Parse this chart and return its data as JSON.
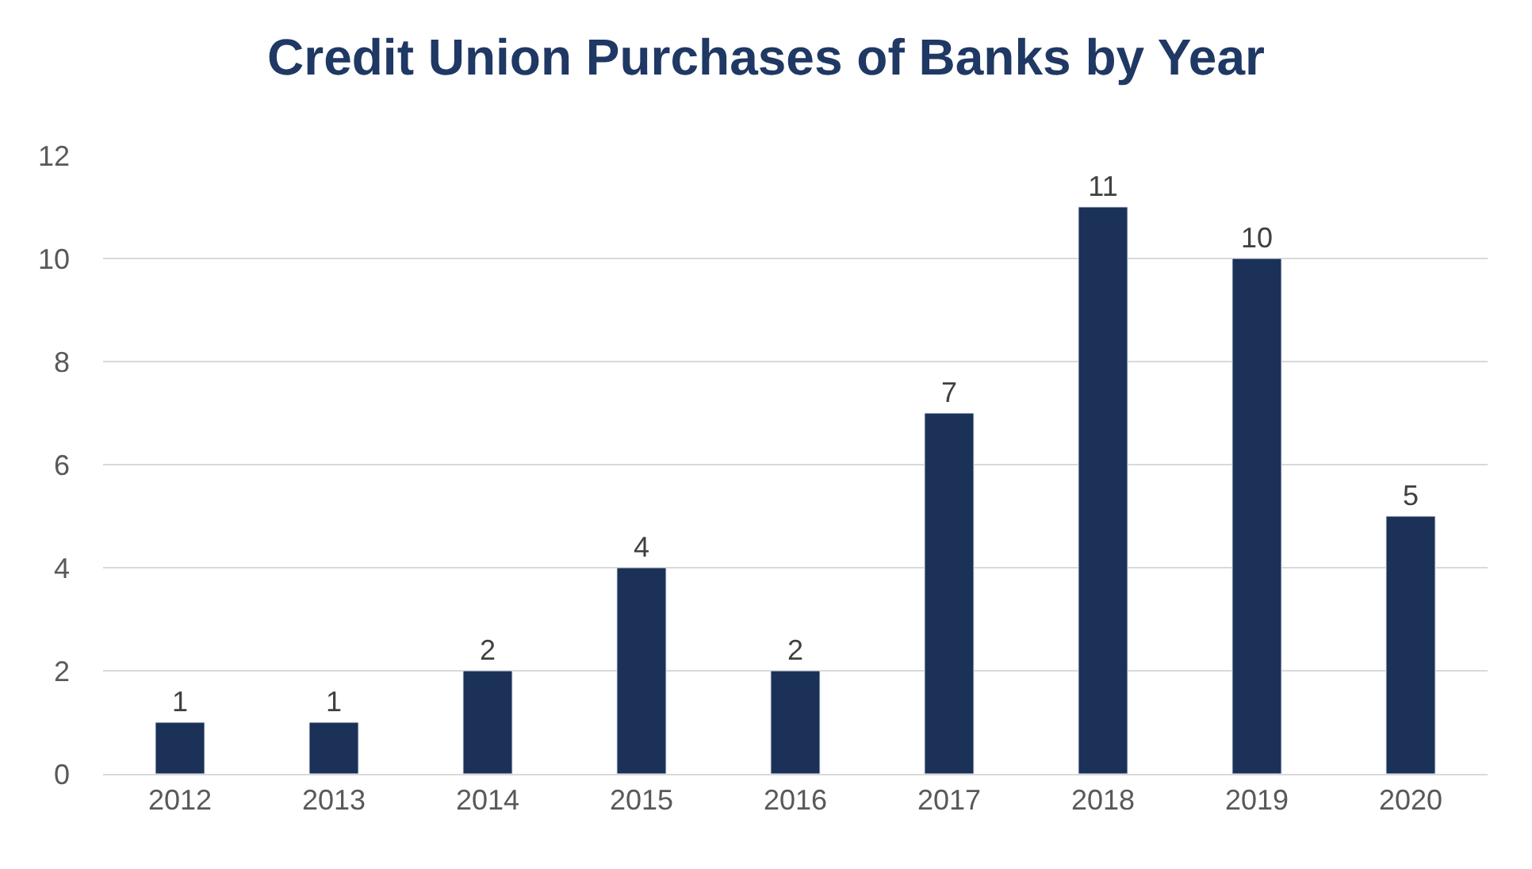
{
  "chart_data": {
    "type": "bar",
    "title": "Credit Union Purchases of Banks by Year",
    "categories": [
      "2012",
      "2013",
      "2014",
      "2015",
      "2016",
      "2017",
      "2018",
      "2019",
      "2020"
    ],
    "values": [
      1,
      1,
      2,
      4,
      2,
      7,
      11,
      10,
      5
    ],
    "color": "#1b3157",
    "ylim": [
      0,
      12
    ],
    "yticks": [
      0,
      2,
      4,
      6,
      8,
      10,
      12
    ],
    "grid": "y",
    "data_labels": true
  }
}
